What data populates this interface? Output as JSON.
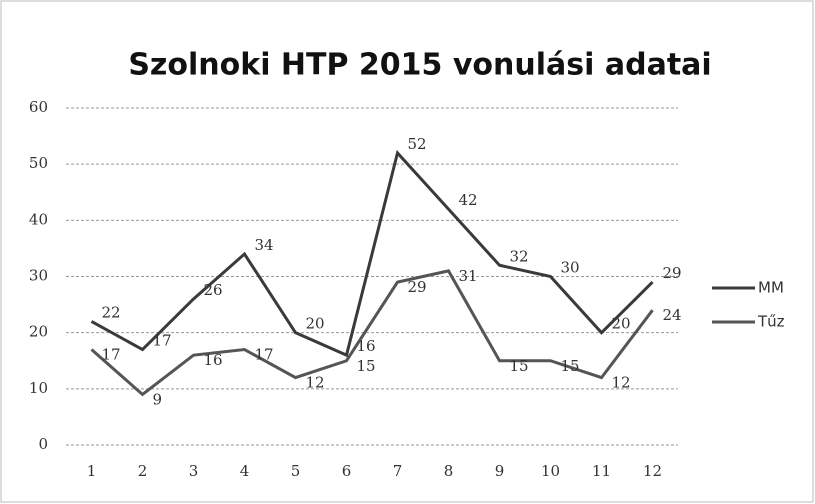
{
  "chart_data": {
    "type": "line",
    "title": "Szolnoki HTP 2015 vonulási adatai",
    "categories": [
      "1",
      "2",
      "3",
      "4",
      "5",
      "6",
      "7",
      "8",
      "9",
      "10",
      "11",
      "12"
    ],
    "series": [
      {
        "name": "MM",
        "color": "#3a3a3a",
        "values": [
          22,
          17,
          26,
          34,
          20,
          16,
          52,
          42,
          32,
          30,
          20,
          29
        ]
      },
      {
        "name": "Tűz",
        "color": "#555555",
        "values": [
          17,
          9,
          16,
          17,
          12,
          15,
          29,
          31,
          15,
          15,
          12,
          24
        ]
      }
    ],
    "ylim": [
      0,
      60
    ],
    "yticks": [
      0,
      10,
      20,
      30,
      40,
      50,
      60
    ],
    "grid": true,
    "legend": "right"
  }
}
